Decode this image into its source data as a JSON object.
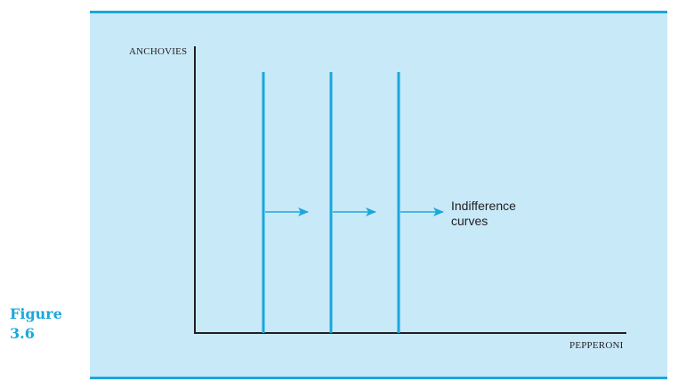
{
  "figure": {
    "label_word": "Figure",
    "label_number": "3.6"
  },
  "diagram": {
    "y_axis_label": "ANCHOVIES",
    "x_axis_label": "PEPPERONI",
    "annotation_line1": "Indifference",
    "annotation_line2": "curves",
    "curve_count": 3,
    "arrow_count": 3,
    "colors": {
      "curve": "#1aa7dc",
      "axis": "#231f20",
      "panel": "#c8e9f8"
    }
  }
}
